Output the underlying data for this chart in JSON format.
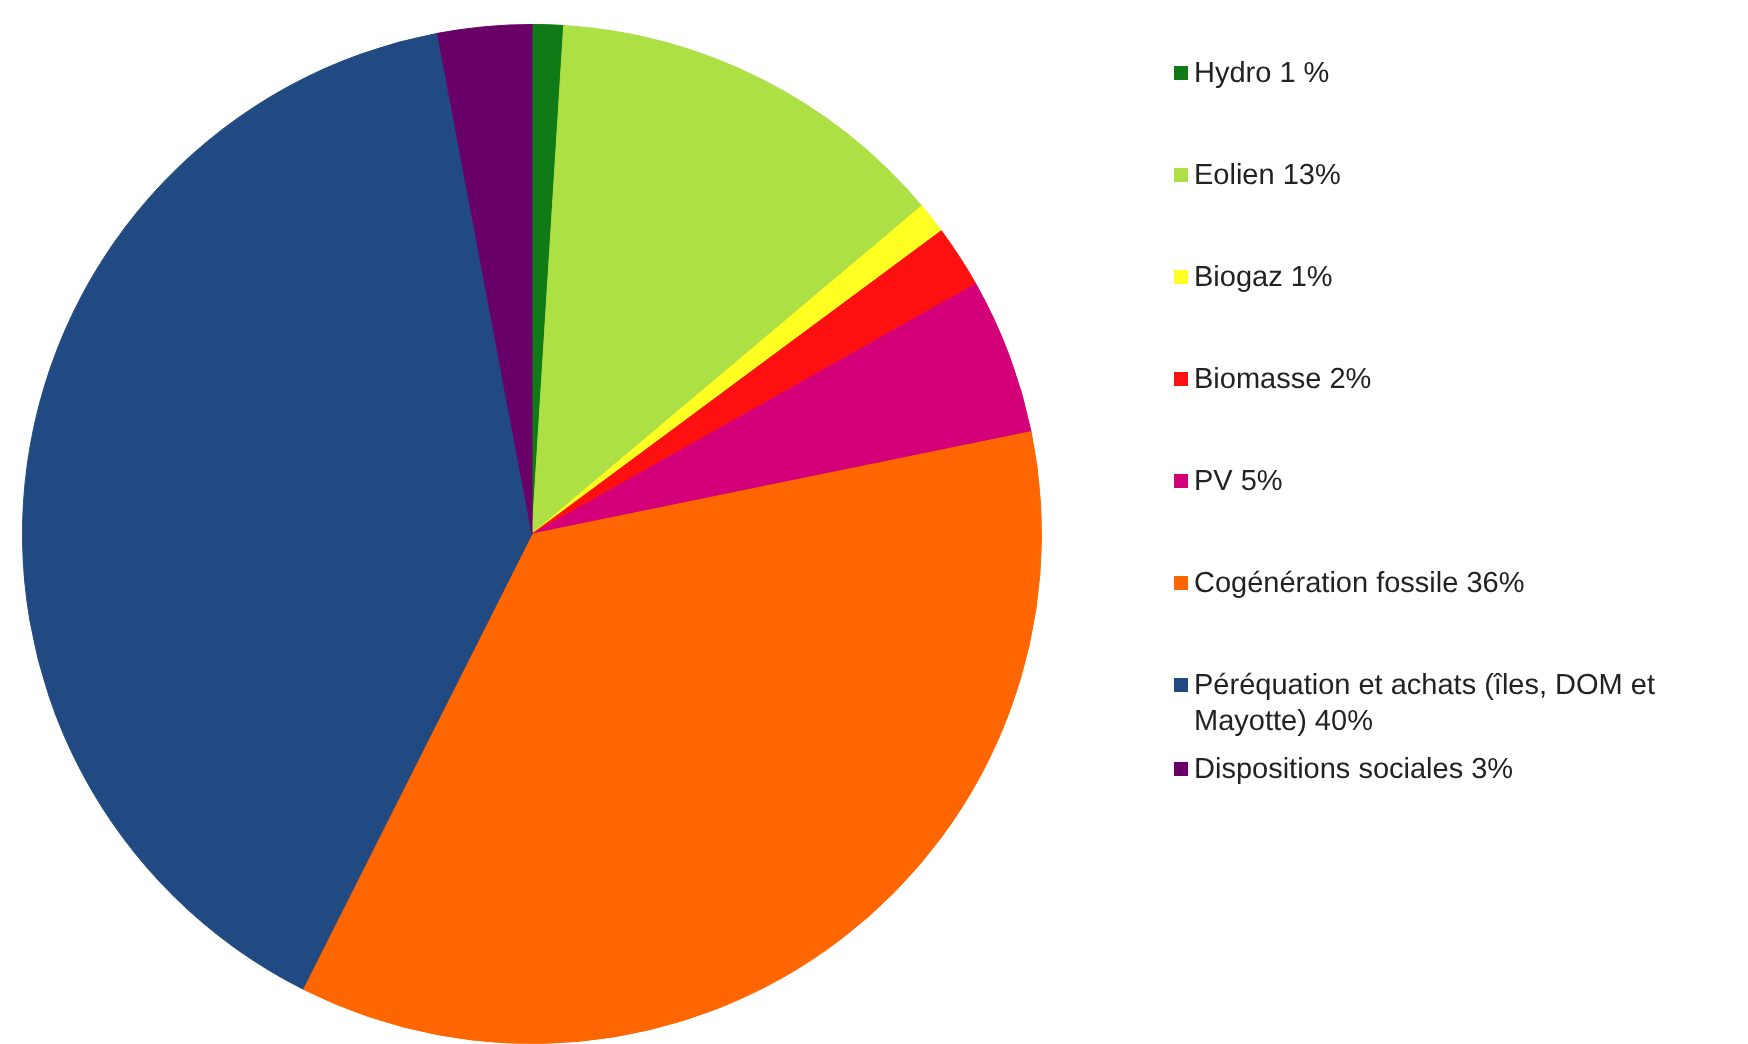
{
  "chart_data": {
    "type": "pie",
    "categories": [
      "Hydro 1 %",
      "Eolien 13%",
      "Biogaz 1%",
      "Biomasse 2%",
      "PV 5%",
      "Cogénération fossile 36%",
      "Péréquation et achats (îles, DOM et Mayotte) 40%",
      "Dispositions sociales 3%"
    ],
    "values": [
      1,
      13,
      1,
      2,
      5,
      36,
      40,
      3
    ],
    "colors": [
      "#0f7a16",
      "#ace044",
      "#ffff22",
      "#ff1010",
      "#d4007a",
      "#ff6600",
      "#224a82",
      "#680068"
    ],
    "legend": "right"
  }
}
